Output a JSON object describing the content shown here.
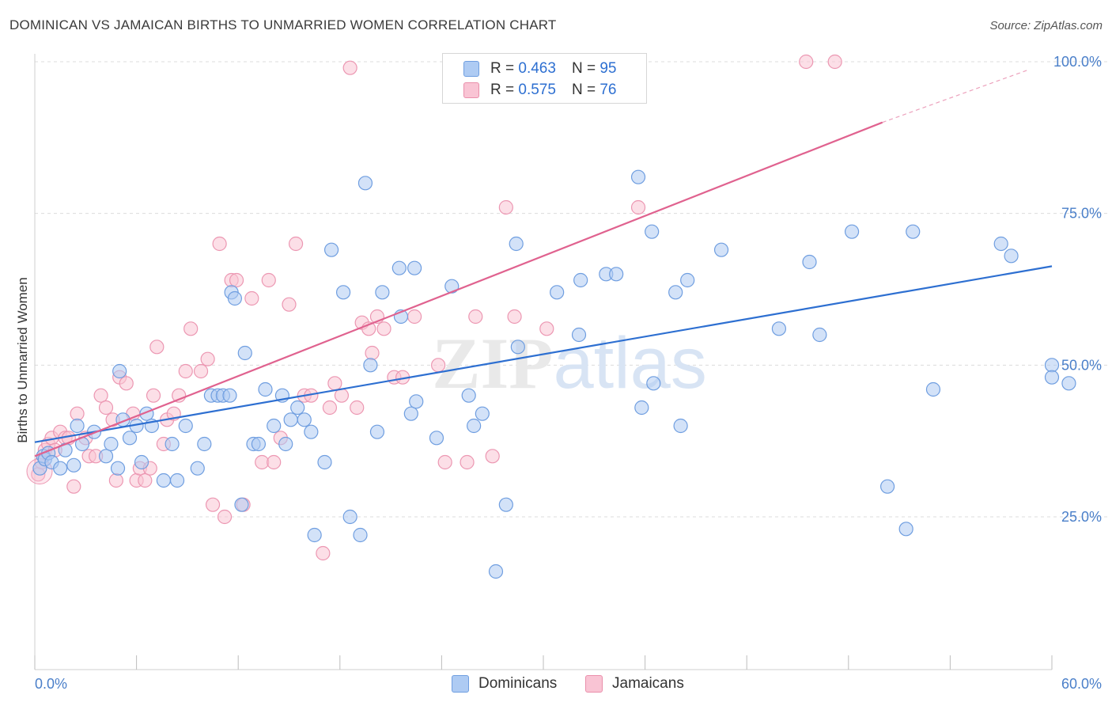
{
  "title": "DOMINICAN VS JAMAICAN BIRTHS TO UNMARRIED WOMEN CORRELATION CHART",
  "source": "Source: ZipAtlas.com",
  "legend": {
    "r_label": "R =",
    "n_label": "N =",
    "dominicans": {
      "r": "0.463",
      "n": "95"
    },
    "jamaicans": {
      "r": "0.575",
      "n": "76"
    }
  },
  "bottom_legend": {
    "dominicans": "Dominicans",
    "jamaicans": "Jamaicans"
  },
  "chart_data": {
    "type": "scatter",
    "title": "DOMINICAN VS JAMAICAN BIRTHS TO UNMARRIED WOMEN CORRELATION CHART",
    "xlabel": "",
    "ylabel": "Births to Unmarried Women",
    "xlim": [
      0,
      60
    ],
    "ylim": [
      0,
      100
    ],
    "x_tick_labels": [
      "0.0%",
      "60.0%"
    ],
    "y_tick_labels": [
      "25.0%",
      "50.0%",
      "75.0%",
      "100.0%"
    ],
    "y_ticks": [
      25,
      50,
      75,
      100
    ],
    "grid": true,
    "watermark": "ZIPatlas",
    "colors": {
      "dominicans": "#2d6fd1",
      "dominicans_fill": "#aecbf3",
      "jamaicans": "#e0628f",
      "jamaicans_fill": "#f9c4d4"
    },
    "series": [
      {
        "name": "Dominicans",
        "trend": {
          "x": [
            0,
            60
          ],
          "y": [
            37.3,
            66.3
          ]
        },
        "points": [
          [
            0.3,
            33
          ],
          [
            0.5,
            35
          ],
          [
            0.6,
            34.5
          ],
          [
            0.8,
            35.5
          ],
          [
            1.0,
            34
          ],
          [
            1.5,
            33
          ],
          [
            1.8,
            36
          ],
          [
            2.3,
            33.5
          ],
          [
            2.5,
            40
          ],
          [
            2.8,
            37
          ],
          [
            3.5,
            39
          ],
          [
            4.2,
            35
          ],
          [
            4.5,
            37
          ],
          [
            4.9,
            33
          ],
          [
            5.0,
            49
          ],
          [
            5.2,
            41
          ],
          [
            5.6,
            38
          ],
          [
            6.0,
            40
          ],
          [
            6.3,
            34
          ],
          [
            6.6,
            42
          ],
          [
            6.9,
            40
          ],
          [
            7.6,
            31
          ],
          [
            8.1,
            37
          ],
          [
            8.4,
            31
          ],
          [
            8.9,
            40
          ],
          [
            9.6,
            33
          ],
          [
            10.0,
            37
          ],
          [
            10.4,
            45
          ],
          [
            10.8,
            45
          ],
          [
            11.1,
            45
          ],
          [
            11.5,
            45
          ],
          [
            11.6,
            62
          ],
          [
            11.8,
            61
          ],
          [
            12.2,
            27
          ],
          [
            12.4,
            52
          ],
          [
            12.9,
            37
          ],
          [
            13.2,
            37
          ],
          [
            13.6,
            46
          ],
          [
            14.1,
            40
          ],
          [
            14.6,
            45
          ],
          [
            14.8,
            37
          ],
          [
            15.1,
            41
          ],
          [
            15.5,
            43
          ],
          [
            15.9,
            41
          ],
          [
            16.3,
            39
          ],
          [
            16.5,
            22
          ],
          [
            17.1,
            34
          ],
          [
            17.5,
            69
          ],
          [
            18.2,
            62
          ],
          [
            18.6,
            25
          ],
          [
            19.2,
            22
          ],
          [
            19.5,
            80
          ],
          [
            19.8,
            50
          ],
          [
            20.2,
            39
          ],
          [
            20.5,
            62
          ],
          [
            21.5,
            66
          ],
          [
            21.6,
            58
          ],
          [
            22.2,
            42
          ],
          [
            22.4,
            66
          ],
          [
            22.5,
            44
          ],
          [
            23.7,
            38
          ],
          [
            24.6,
            63
          ],
          [
            25.6,
            45
          ],
          [
            25.9,
            40
          ],
          [
            26.4,
            42
          ],
          [
            27.2,
            16
          ],
          [
            27.8,
            27
          ],
          [
            28.4,
            70
          ],
          [
            28.5,
            53
          ],
          [
            30.8,
            62
          ],
          [
            32.1,
            55
          ],
          [
            32.2,
            64
          ],
          [
            33.7,
            65
          ],
          [
            34.3,
            65
          ],
          [
            35.6,
            81
          ],
          [
            35.8,
            43
          ],
          [
            36.4,
            72
          ],
          [
            36.5,
            47
          ],
          [
            37.8,
            62
          ],
          [
            38.1,
            40
          ],
          [
            38.5,
            64
          ],
          [
            40.5,
            69
          ],
          [
            43.9,
            56
          ],
          [
            45.7,
            67
          ],
          [
            46.3,
            55
          ],
          [
            48.2,
            72
          ],
          [
            50.3,
            30
          ],
          [
            51.4,
            23
          ],
          [
            51.8,
            72
          ],
          [
            53.0,
            46
          ],
          [
            57.0,
            70
          ],
          [
            57.6,
            68
          ],
          [
            60.0,
            50
          ],
          [
            60.0,
            48
          ],
          [
            61.0,
            47
          ]
        ]
      },
      {
        "name": "Jamaicans",
        "trend": {
          "x": [
            0,
            50
          ],
          "y": [
            35.0,
            90.0
          ]
        },
        "trend_extrapolated": {
          "x": [
            50,
            60
          ],
          "y": [
            90.0,
            101.0
          ]
        },
        "points": [
          [
            0.2,
            32
          ],
          [
            0.4,
            34
          ],
          [
            0.6,
            36
          ],
          [
            0.8,
            37
          ],
          [
            1.0,
            38
          ],
          [
            1.2,
            36
          ],
          [
            1.5,
            39
          ],
          [
            1.8,
            38
          ],
          [
            2.0,
            38
          ],
          [
            2.3,
            30
          ],
          [
            2.5,
            42
          ],
          [
            3.0,
            38
          ],
          [
            3.2,
            35
          ],
          [
            3.6,
            35
          ],
          [
            3.9,
            45
          ],
          [
            4.2,
            43
          ],
          [
            4.6,
            41
          ],
          [
            4.8,
            31
          ],
          [
            5.0,
            48
          ],
          [
            5.4,
            47
          ],
          [
            5.8,
            42
          ],
          [
            6.0,
            31
          ],
          [
            6.2,
            33
          ],
          [
            6.5,
            31
          ],
          [
            6.8,
            33
          ],
          [
            7.0,
            45
          ],
          [
            7.2,
            53
          ],
          [
            7.6,
            37
          ],
          [
            7.8,
            41
          ],
          [
            8.2,
            42
          ],
          [
            8.5,
            45
          ],
          [
            8.9,
            49
          ],
          [
            9.2,
            56
          ],
          [
            9.8,
            49
          ],
          [
            10.2,
            51
          ],
          [
            10.5,
            27
          ],
          [
            10.9,
            70
          ],
          [
            11.2,
            25
          ],
          [
            11.6,
            64
          ],
          [
            11.9,
            64
          ],
          [
            12.3,
            27
          ],
          [
            12.8,
            61
          ],
          [
            13.4,
            34
          ],
          [
            13.8,
            64
          ],
          [
            14.1,
            34
          ],
          [
            14.5,
            38
          ],
          [
            15.0,
            60
          ],
          [
            15.4,
            70
          ],
          [
            15.9,
            45
          ],
          [
            16.3,
            45
          ],
          [
            17.0,
            19
          ],
          [
            17.4,
            43
          ],
          [
            17.7,
            47
          ],
          [
            18.1,
            45
          ],
          [
            18.6,
            99
          ],
          [
            19.0,
            43
          ],
          [
            19.3,
            57
          ],
          [
            19.7,
            56
          ],
          [
            19.9,
            52
          ],
          [
            20.2,
            58
          ],
          [
            20.6,
            56
          ],
          [
            21.2,
            48
          ],
          [
            21.7,
            48
          ],
          [
            22.4,
            58
          ],
          [
            23.8,
            50
          ],
          [
            24.2,
            34
          ],
          [
            25.5,
            34
          ],
          [
            26.0,
            58
          ],
          [
            27.0,
            35
          ],
          [
            27.8,
            76
          ],
          [
            28.3,
            58
          ],
          [
            30.2,
            56
          ],
          [
            33.1,
            100
          ],
          [
            35.6,
            76
          ],
          [
            45.5,
            100
          ],
          [
            47.2,
            100
          ]
        ]
      }
    ]
  }
}
